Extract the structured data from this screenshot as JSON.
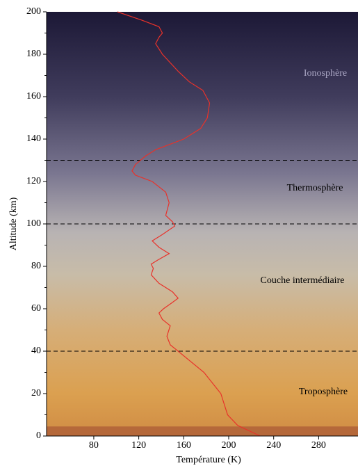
{
  "chart_data": {
    "type": "line",
    "x_label": "Température (K)",
    "y_label": "Altitude (km)",
    "xlim": [
      38,
      315
    ],
    "ylim": [
      0,
      200
    ],
    "xticks": [
      80,
      120,
      160,
      200,
      240,
      280
    ],
    "yticks": [
      0,
      20,
      40,
      60,
      80,
      100,
      120,
      140,
      160,
      180,
      200
    ],
    "yminorticks": [
      10,
      30,
      50,
      70,
      90,
      110,
      130,
      150,
      170,
      190
    ],
    "boundaries": [
      40,
      100,
      130
    ],
    "surface_layer": 4.5,
    "zones": [
      "Ionosphère",
      "Thermosphère",
      "Couche intermédiaire",
      "Troposphère"
    ],
    "series": [
      {
        "color": "#e8322a",
        "x": [
          228,
          208,
          199,
          193,
          178,
          155,
          148,
          145,
          148,
          141,
          138,
          142,
          150,
          155,
          150,
          138,
          131,
          133,
          131,
          137,
          147,
          138,
          132,
          141,
          152,
          150,
          144,
          147,
          144,
          132,
          117,
          114,
          117,
          126,
          135,
          160,
          175,
          181,
          183,
          177,
          165,
          155,
          141,
          135,
          138,
          141,
          138,
          123,
          101
        ],
        "y": [
          0,
          5,
          10,
          20,
          30,
          40,
          43,
          47,
          52,
          55,
          58,
          60,
          63,
          65,
          68,
          72,
          76,
          79,
          81,
          83,
          86,
          89,
          92,
          95,
          99,
          101,
          104,
          110,
          115,
          120,
          123,
          125,
          128,
          132,
          135,
          140,
          145,
          150,
          157,
          163,
          167,
          172,
          180,
          185,
          188,
          190,
          193,
          196,
          200
        ]
      }
    ]
  }
}
